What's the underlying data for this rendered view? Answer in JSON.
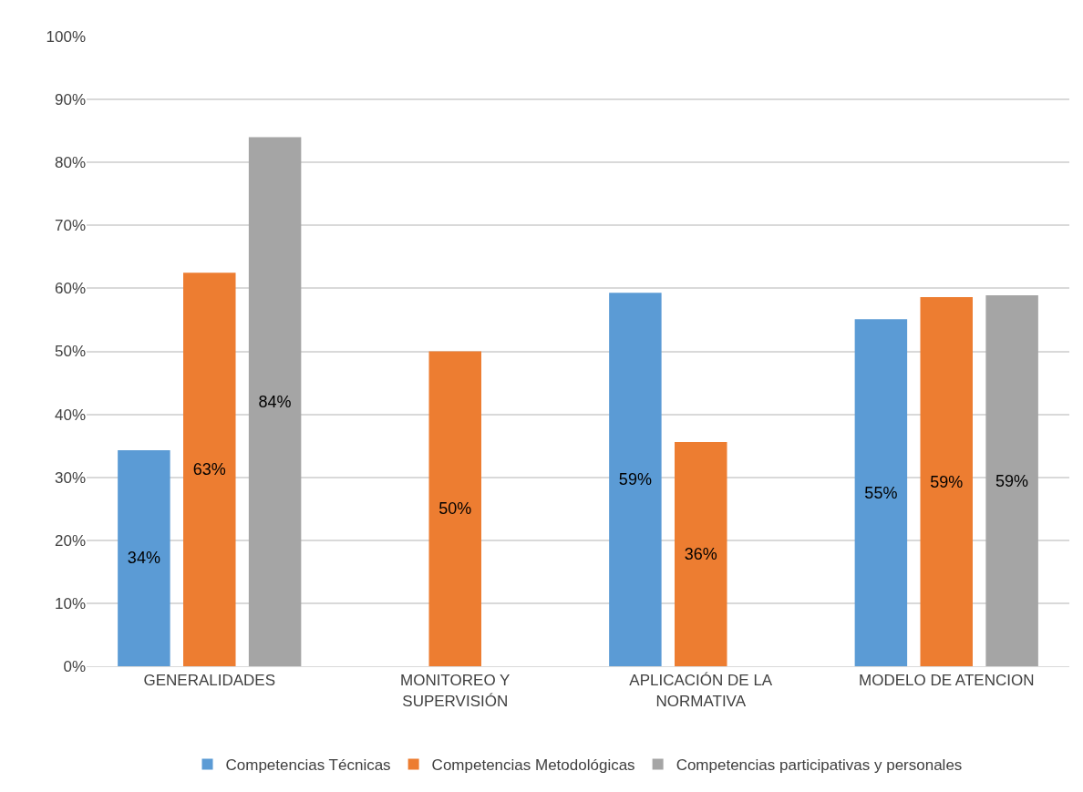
{
  "chart_data": {
    "type": "bar",
    "categories": [
      "GENERALIDADES",
      "MONITOREO Y SUPERVISIÓN",
      "APLICACIÓN DE LA NORMATIVA",
      "MODELO DE ATENCION"
    ],
    "series": [
      {
        "name": "Competencias Técnicas",
        "color": "#5b9bd5",
        "values": [
          34.3,
          null,
          59.3,
          55.1
        ],
        "value_labels": [
          "34%",
          null,
          "59%",
          "55%"
        ]
      },
      {
        "name": "Competencias Metodológicas",
        "color": "#ed7d31",
        "values": [
          62.5,
          50,
          35.6,
          58.6
        ],
        "value_labels": [
          "63%",
          "50%",
          "36%",
          "59%"
        ]
      },
      {
        "name": "Competencias participativas y personales",
        "color": "#a5a5a5",
        "values": [
          84,
          null,
          null,
          58.9
        ],
        "value_labels": [
          "84%",
          null,
          null,
          "59%"
        ]
      }
    ],
    "ylim": [
      0,
      100
    ],
    "yticks": [
      {
        "value": 0,
        "label": "0%"
      },
      {
        "value": 10,
        "label": "10%"
      },
      {
        "value": 20,
        "label": "20%"
      },
      {
        "value": 30,
        "label": "30%"
      },
      {
        "value": 40,
        "label": "40%"
      },
      {
        "value": 50,
        "label": "50%"
      },
      {
        "value": 60,
        "label": "60%"
      },
      {
        "value": 70,
        "label": "70%"
      },
      {
        "value": 80,
        "label": "80%"
      },
      {
        "value": 90,
        "label": "90%"
      },
      {
        "value": 100,
        "label": "100%"
      }
    ],
    "grid": "y",
    "legend": "bottom"
  }
}
